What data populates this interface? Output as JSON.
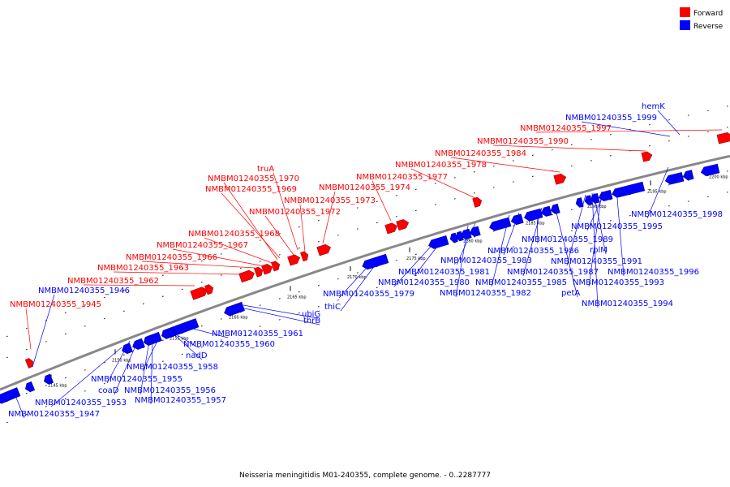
{
  "caption": "Neisseria meningitidis M01-240355, complete genome. - 0..2287777",
  "legend": [
    {
      "label": "Forward",
      "color": "#ff0000"
    },
    {
      "label": "Reverse",
      "color": "#0000ff"
    }
  ],
  "colors": {
    "forward": "#ff0000",
    "reverse": "#0000ff",
    "backbone": "#888888",
    "leader": "#000000"
  },
  "scale": {
    "ticks": [
      "2145 kbp",
      "2150 kbp",
      "2155 kbp",
      "2160 kbp",
      "2165 kbp",
      "2170 kbp",
      "2175 kbp",
      "2180 kbp",
      "2185 kbp",
      "2190 kbp",
      "2195 kbp",
      "2200 kbp"
    ]
  },
  "forward_labels": [
    "NMBM01240355_1945",
    "NMBM01240355_1962",
    "NMBM01240355_1963",
    "NMBM01240355_1966",
    "NMBM01240355_1967",
    "NMBM01240355_1968",
    "NMBM01240355_1972",
    "NMBM01240355_1973",
    "NMBM01240355_1969",
    "NMBM01240355_1970",
    "truA",
    "NMBM01240355_1974",
    "NMBM01240355_1977",
    "NMBM01240355_1978",
    "NMBM01240355_1984",
    "NMBM01240355_1990",
    "NMBM01240355_1997"
  ],
  "reverse_labels": [
    "NMBM01240355_1946",
    "NMBM01240355_1947",
    "NMBM01240355_1953",
    "coaD",
    "NMBM01240355_1955",
    "NMBM01240355_1956",
    "NMBM01240355_1957",
    "NMBM01240355_1958",
    "nadD",
    "NMBM01240355_1960",
    "NMBM01240355_1961",
    "thrB",
    "ubiG",
    "thiC",
    "NMBM01240355_1979",
    "NMBM01240355_1980",
    "NMBM01240355_1981",
    "NMBM01240355_1982",
    "NMBM01240355_1983",
    "NMBM01240355_1985",
    "NMBM01240355_1986",
    "NMBM01240355_1987",
    "petA",
    "NMBM01240355_1989",
    "rplM",
    "NMBM01240355_1991",
    "NMBM01240355_1993",
    "NMBM01240355_1994",
    "NMBM01240355_1995",
    "NMBM01240355_1996",
    "NMBM01240355_1998",
    "NMBM01240355_1999",
    "hemK"
  ]
}
